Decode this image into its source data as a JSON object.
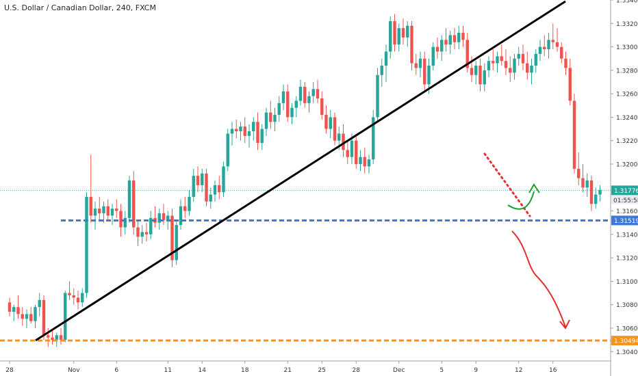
{
  "chart_data": {
    "type": "candlestick",
    "title": "U.S. Dollar / Canadian Dollar, 240, FXCM",
    "y_ticks": [
      "1.33400",
      "1.33200",
      "1.33000",
      "1.32800",
      "1.32600",
      "1.32400",
      "1.32200",
      "1.32000",
      "1.31600",
      "1.31400",
      "1.31200",
      "1.31000",
      "1.30800",
      "1.30600",
      "1.30400"
    ],
    "y_tick_values": [
      1.334,
      1.332,
      1.33,
      1.328,
      1.326,
      1.324,
      1.322,
      1.32,
      1.316,
      1.314,
      1.312,
      1.31,
      1.308,
      1.306,
      1.304
    ],
    "x_ticks": [
      "28",
      "Nov",
      "6",
      "11",
      "14",
      "18",
      "21",
      "25",
      "28",
      "Dec",
      "5",
      "9",
      "12",
      "16"
    ],
    "x_tick_index": [
      0,
      15,
      25,
      37,
      45,
      55,
      65,
      73,
      81,
      91,
      101,
      109,
      119,
      127
    ],
    "ylim": [
      1.3032,
      1.334
    ],
    "last_price": "1.31776",
    "countdown": "01:55:58",
    "support_level": "1.31519",
    "target_level": "1.30494",
    "support_value": 1.31519,
    "target_value": 1.30494,
    "last_value": 1.31776,
    "candles": [
      [
        1.3082,
        1.3086,
        1.307,
        1.3074
      ],
      [
        1.3074,
        1.308,
        1.3066,
        1.3078
      ],
      [
        1.3078,
        1.3088,
        1.3068,
        1.3072
      ],
      [
        1.3072,
        1.3078,
        1.3062,
        1.3068
      ],
      [
        1.3068,
        1.3076,
        1.306,
        1.3072
      ],
      [
        1.3072,
        1.3078,
        1.3064,
        1.3066
      ],
      [
        1.3066,
        1.308,
        1.306,
        1.3078
      ],
      [
        1.3078,
        1.309,
        1.307,
        1.3084
      ],
      [
        1.3084,
        1.3088,
        1.305,
        1.3054
      ],
      [
        1.3054,
        1.306,
        1.3044,
        1.3052
      ],
      [
        1.3052,
        1.3058,
        1.3046,
        1.305
      ],
      [
        1.305,
        1.3056,
        1.3044,
        1.3054
      ],
      [
        1.3054,
        1.306,
        1.3046,
        1.305
      ],
      [
        1.305,
        1.3092,
        1.3048,
        1.309
      ],
      [
        1.309,
        1.31,
        1.3084,
        1.3088
      ],
      [
        1.3088,
        1.3094,
        1.308,
        1.3086
      ],
      [
        1.3086,
        1.3092,
        1.3076,
        1.3082
      ],
      [
        1.3082,
        1.3094,
        1.3078,
        1.309
      ],
      [
        1.309,
        1.3176,
        1.3086,
        1.3172
      ],
      [
        1.3172,
        1.3208,
        1.315,
        1.3156
      ],
      [
        1.3156,
        1.3168,
        1.3144,
        1.3162
      ],
      [
        1.3162,
        1.3172,
        1.3152,
        1.3158
      ],
      [
        1.3158,
        1.3168,
        1.315,
        1.3164
      ],
      [
        1.3164,
        1.317,
        1.3152,
        1.3156
      ],
      [
        1.3156,
        1.3166,
        1.3148,
        1.3162
      ],
      [
        1.3162,
        1.317,
        1.3154,
        1.316
      ],
      [
        1.316,
        1.3166,
        1.3138,
        1.3146
      ],
      [
        1.3146,
        1.316,
        1.314,
        1.3154
      ],
      [
        1.3154,
        1.319,
        1.315,
        1.3186
      ],
      [
        1.3186,
        1.3194,
        1.314,
        1.3146
      ],
      [
        1.3146,
        1.3152,
        1.313,
        1.3138
      ],
      [
        1.3138,
        1.3148,
        1.3132,
        1.3142
      ],
      [
        1.3142,
        1.315,
        1.3134,
        1.314
      ],
      [
        1.314,
        1.316,
        1.3136,
        1.3154
      ],
      [
        1.3154,
        1.3164,
        1.3146,
        1.315
      ],
      [
        1.315,
        1.3162,
        1.3144,
        1.3158
      ],
      [
        1.3158,
        1.3166,
        1.3148,
        1.3152
      ],
      [
        1.3152,
        1.316,
        1.3144,
        1.3156
      ],
      [
        1.3156,
        1.3162,
        1.3112,
        1.3118
      ],
      [
        1.3118,
        1.3152,
        1.3114,
        1.3148
      ],
      [
        1.3148,
        1.317,
        1.3144,
        1.3164
      ],
      [
        1.3164,
        1.3172,
        1.3154,
        1.316
      ],
      [
        1.316,
        1.3178,
        1.3156,
        1.3172
      ],
      [
        1.3172,
        1.3196,
        1.3168,
        1.319
      ],
      [
        1.319,
        1.3198,
        1.3176,
        1.3182
      ],
      [
        1.3182,
        1.3196,
        1.3176,
        1.3192
      ],
      [
        1.3192,
        1.3196,
        1.3164,
        1.3168
      ],
      [
        1.3168,
        1.318,
        1.3162,
        1.3174
      ],
      [
        1.3174,
        1.3186,
        1.3168,
        1.3182
      ],
      [
        1.3182,
        1.319,
        1.317,
        1.3176
      ],
      [
        1.3176,
        1.3202,
        1.3172,
        1.3198
      ],
      [
        1.3198,
        1.323,
        1.3194,
        1.3226
      ],
      [
        1.3226,
        1.3236,
        1.3216,
        1.323
      ],
      [
        1.323,
        1.3238,
        1.3222,
        1.3228
      ],
      [
        1.3228,
        1.3236,
        1.322,
        1.3232
      ],
      [
        1.3232,
        1.324,
        1.3218,
        1.3224
      ],
      [
        1.3224,
        1.3234,
        1.3214,
        1.3228
      ],
      [
        1.3228,
        1.324,
        1.322,
        1.3236
      ],
      [
        1.3236,
        1.3244,
        1.3212,
        1.3218
      ],
      [
        1.3218,
        1.3234,
        1.3212,
        1.323
      ]
    ],
    "candles_2": [
      [
        1.323,
        1.3248,
        1.3224,
        1.3244
      ],
      [
        1.3244,
        1.3254,
        1.323,
        1.3236
      ],
      [
        1.3236,
        1.3248,
        1.3228,
        1.3242
      ],
      [
        1.3242,
        1.3258,
        1.3236,
        1.3252
      ],
      [
        1.3252,
        1.3268,
        1.3246,
        1.3262
      ],
      [
        1.3262,
        1.3268,
        1.3236,
        1.324
      ],
      [
        1.324,
        1.3252,
        1.3234,
        1.3248
      ],
      [
        1.3248,
        1.3258,
        1.324,
        1.3254
      ],
      [
        1.3254,
        1.3272,
        1.325,
        1.3266
      ],
      [
        1.3266,
        1.327,
        1.3248,
        1.3252
      ],
      [
        1.3252,
        1.3262,
        1.3244,
        1.3258
      ],
      [
        1.3258,
        1.327,
        1.3252,
        1.3264
      ],
      [
        1.3264,
        1.3272,
        1.3252,
        1.3256
      ],
      [
        1.3256,
        1.3262,
        1.3238,
        1.3242
      ],
      [
        1.3242,
        1.325,
        1.3226,
        1.323
      ],
      [
        1.323,
        1.3246,
        1.3222,
        1.324
      ],
      [
        1.324,
        1.3244,
        1.3216,
        1.322
      ],
      [
        1.322,
        1.3232,
        1.3212,
        1.3226
      ],
      [
        1.3226,
        1.3234,
        1.3206,
        1.3212
      ],
      [
        1.3212,
        1.322,
        1.32,
        1.3206
      ],
      [
        1.3206,
        1.3226,
        1.32,
        1.322
      ],
      [
        1.322,
        1.3224,
        1.3196,
        1.32
      ],
      [
        1.32,
        1.3212,
        1.3194,
        1.3206
      ],
      [
        1.3206,
        1.3214,
        1.3192,
        1.3198
      ],
      [
        1.3198,
        1.3208,
        1.3192,
        1.3204
      ],
      [
        1.3204,
        1.3246,
        1.32,
        1.324
      ],
      [
        1.324,
        1.3282,
        1.3236,
        1.3276
      ],
      [
        1.3276,
        1.329,
        1.3266,
        1.3284
      ],
      [
        1.3284,
        1.3302,
        1.327,
        1.3296
      ],
      [
        1.3296,
        1.3326,
        1.329,
        1.3322
      ],
      [
        1.3322,
        1.3328,
        1.3296,
        1.3302
      ],
      [
        1.3302,
        1.332,
        1.3296,
        1.3316
      ],
      [
        1.3316,
        1.3324,
        1.3302,
        1.3308
      ],
      [
        1.3308,
        1.3322,
        1.33,
        1.3318
      ],
      [
        1.3318,
        1.3322,
        1.328,
        1.3286
      ],
      [
        1.3286,
        1.3294,
        1.3276,
        1.3282
      ],
      [
        1.3282,
        1.3296,
        1.3274,
        1.329
      ],
      [
        1.329,
        1.3296,
        1.3262,
        1.3268
      ],
      [
        1.3268,
        1.329,
        1.326,
        1.3284
      ],
      [
        1.3284,
        1.3304,
        1.328,
        1.33
      ],
      [
        1.33,
        1.3308,
        1.329,
        1.3296
      ],
      [
        1.3296,
        1.331,
        1.3288,
        1.3306
      ],
      [
        1.3306,
        1.3316,
        1.3296,
        1.3302
      ],
      [
        1.3302,
        1.3314,
        1.3294,
        1.331
      ],
      [
        1.331,
        1.3316,
        1.3298,
        1.3304
      ],
      [
        1.3304,
        1.3318,
        1.3298,
        1.3312
      ],
      [
        1.3312,
        1.3318,
        1.33,
        1.3306
      ],
      [
        1.3306,
        1.3312,
        1.3278,
        1.3282
      ],
      [
        1.3282,
        1.3292,
        1.327,
        1.3276
      ],
      [
        1.3276,
        1.3288,
        1.3268,
        1.3284
      ],
      [
        1.3284,
        1.329,
        1.3262,
        1.3268
      ],
      [
        1.3268,
        1.3286,
        1.3262,
        1.328
      ],
      [
        1.328,
        1.3292,
        1.3274,
        1.3288
      ],
      [
        1.3288,
        1.3298,
        1.328,
        1.3286
      ],
      [
        1.3286,
        1.3296,
        1.3278,
        1.3292
      ],
      [
        1.3292,
        1.3302,
        1.3284,
        1.3288
      ],
      [
        1.3288,
        1.3298,
        1.3276,
        1.3282
      ],
      [
        1.3282,
        1.3292,
        1.327,
        1.3278
      ],
      [
        1.3278,
        1.3294,
        1.3272,
        1.329
      ],
      [
        1.329,
        1.33,
        1.3284,
        1.3294
      ]
    ],
    "candles_3": [
      [
        1.3294,
        1.3302,
        1.328,
        1.3286
      ],
      [
        1.3286,
        1.3296,
        1.3272,
        1.3278
      ],
      [
        1.3278,
        1.329,
        1.3268,
        1.3284
      ],
      [
        1.3284,
        1.3298,
        1.3278,
        1.3294
      ],
      [
        1.3294,
        1.3306,
        1.3288,
        1.33
      ],
      [
        1.33,
        1.331,
        1.3292,
        1.3298
      ],
      [
        1.3298,
        1.3312,
        1.329,
        1.3306
      ],
      [
        1.3306,
        1.332,
        1.3298,
        1.3304
      ],
      [
        1.3304,
        1.3316,
        1.3296,
        1.33
      ],
      [
        1.33,
        1.3304,
        1.3286,
        1.329
      ],
      [
        1.329,
        1.3296,
        1.3276,
        1.3282
      ],
      [
        1.3282,
        1.329,
        1.325,
        1.3254
      ],
      [
        1.3254,
        1.326,
        1.3192,
        1.3196
      ],
      [
        1.3196,
        1.321,
        1.3182,
        1.3188
      ],
      [
        1.3188,
        1.32,
        1.3176,
        1.318
      ],
      [
        1.318,
        1.3192,
        1.3172,
        1.3186
      ],
      [
        1.3186,
        1.319,
        1.316,
        1.3166
      ],
      [
        1.3166,
        1.318,
        1.3162,
        1.3174
      ],
      [
        1.3174,
        1.3182,
        1.3168,
        1.3178
      ]
    ]
  },
  "colors": {
    "up": "#26a69a",
    "down": "#ef5350",
    "support": "#3d7ad6",
    "target": "#f7931a",
    "trendline": "#000000",
    "red_arrow": "#e52e2e",
    "green_arrow": "#1a9e2a"
  }
}
